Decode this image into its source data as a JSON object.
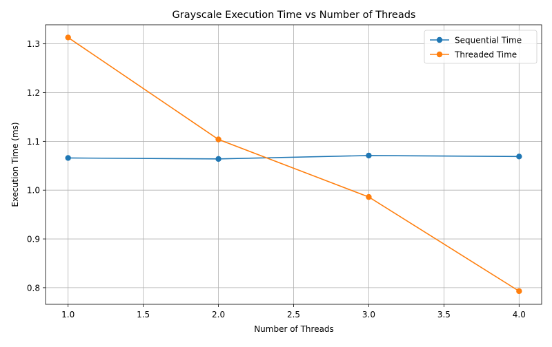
{
  "chart_data": {
    "type": "line",
    "title": "Grayscale Execution Time vs Number of Threads",
    "xlabel": "Number of Threads",
    "ylabel": "Execution Time (ms)",
    "x": [
      1,
      2,
      3,
      4
    ],
    "xlim": [
      0.85,
      4.15
    ],
    "ylim": [
      0.766,
      1.339
    ],
    "xticks": [
      "1.0",
      "1.5",
      "2.0",
      "2.5",
      "3.0",
      "3.5",
      "4.0"
    ],
    "yticks": [
      "0.8",
      "0.9",
      "1.0",
      "1.1",
      "1.2",
      "1.3"
    ],
    "grid": true,
    "legend_position": "top-right",
    "series": [
      {
        "name": "Sequential Time",
        "color": "#1f77b4",
        "marker": "circle",
        "values": [
          1.066,
          1.064,
          1.071,
          1.069
        ]
      },
      {
        "name": "Threaded Time",
        "color": "#ff7f0e",
        "marker": "circle",
        "values": [
          1.313,
          1.104,
          0.986,
          0.793
        ]
      }
    ]
  }
}
